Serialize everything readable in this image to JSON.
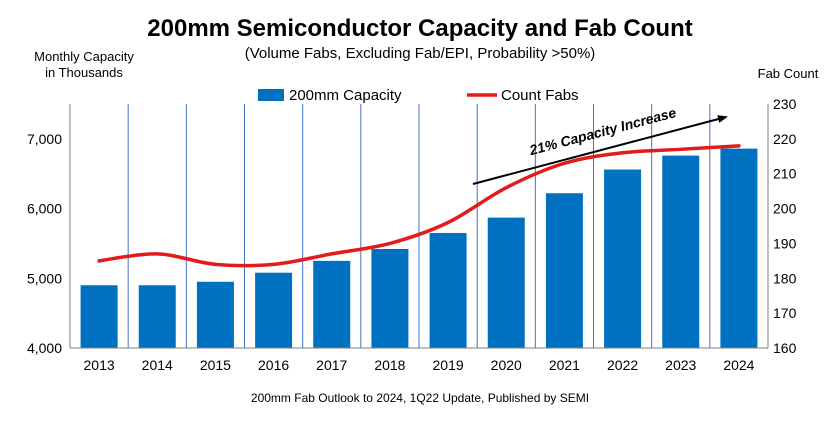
{
  "chart_data": {
    "type": "bar",
    "title": "200mm Semiconductor Capacity and Fab Count",
    "subtitle": "(Volume Fabs, Excluding Fab/EPI, Probability >50%)",
    "ylabel_left_line1": "Monthly Capacity",
    "ylabel_left_line2": "in Thousands",
    "ylabel_right": "Fab Count",
    "source": "200mm Fab Outlook to 2024, 1Q22 Update, Published by SEMI",
    "annotation": "21% Capacity Increase",
    "categories": [
      "2013",
      "2014",
      "2015",
      "2016",
      "2017",
      "2018",
      "2019",
      "2020",
      "2021",
      "2022",
      "2023",
      "2024"
    ],
    "series": [
      {
        "name": "200mm Capacity",
        "type": "bar",
        "axis": "left",
        "color": "#0070C0",
        "values": [
          4900,
          4900,
          4950,
          5080,
          5250,
          5420,
          5650,
          5870,
          6220,
          6560,
          6760,
          6860
        ]
      },
      {
        "name": "Count Fabs",
        "type": "line",
        "axis": "right",
        "color": "#E31B1B",
        "values": [
          185,
          187,
          184,
          184,
          187,
          190,
          196,
          206,
          213,
          216,
          217,
          218
        ]
      }
    ],
    "y_left": {
      "min": 4000,
      "max": 7500,
      "ticks": [
        4000,
        5000,
        6000,
        7000
      ],
      "tick_labels": [
        "4,000",
        "5,000",
        "6,000",
        "7,000"
      ]
    },
    "y_right": {
      "min": 160,
      "max": 230,
      "ticks": [
        160,
        170,
        180,
        190,
        200,
        210,
        220,
        230
      ],
      "tick_labels": [
        "160",
        "170",
        "180",
        "190",
        "200",
        "210",
        "220",
        "230"
      ]
    },
    "legend_position": "top-center",
    "grid": "vertical"
  }
}
